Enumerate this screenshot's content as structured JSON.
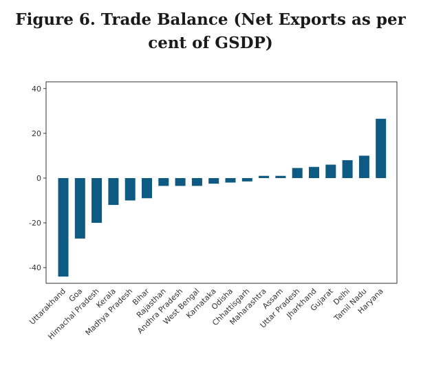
{
  "title_lines": [
    "Figure 6. Trade Balance (Net Exports as per",
    "cent of GSDP)"
  ],
  "chart_data": {
    "type": "bar",
    "title": "Figure 6. Trade Balance (Net Exports as per cent of GSDP)",
    "xlabel": "",
    "ylabel": "",
    "ylim": [
      -47,
      43
    ],
    "yticks": [
      -40,
      -20,
      0,
      20,
      40
    ],
    "grid": false,
    "legend": "none",
    "bar_color": "#0e5a82",
    "categories": [
      "Uttarakhand",
      "Goa",
      "Himachal Pradesh",
      "Kerala",
      "Madhya Pradesh",
      "Bihar",
      "Rajasthan",
      "Andhra Pradesh",
      "West Bengal",
      "Karnataka",
      "Odisha",
      "Chhattisgarh",
      "Maharashtra",
      "Assam",
      "Uttar Pradesh",
      "Jharkhand",
      "Gujarat",
      "Delhi",
      "Tamil Nadu",
      "Haryana"
    ],
    "values": [
      -44,
      -27,
      -20,
      -12,
      -10,
      -9,
      -3.5,
      -3.5,
      -3.5,
      -2.5,
      -2,
      -1.5,
      1,
      1,
      4.5,
      5,
      6,
      8,
      10,
      26.5
    ]
  }
}
